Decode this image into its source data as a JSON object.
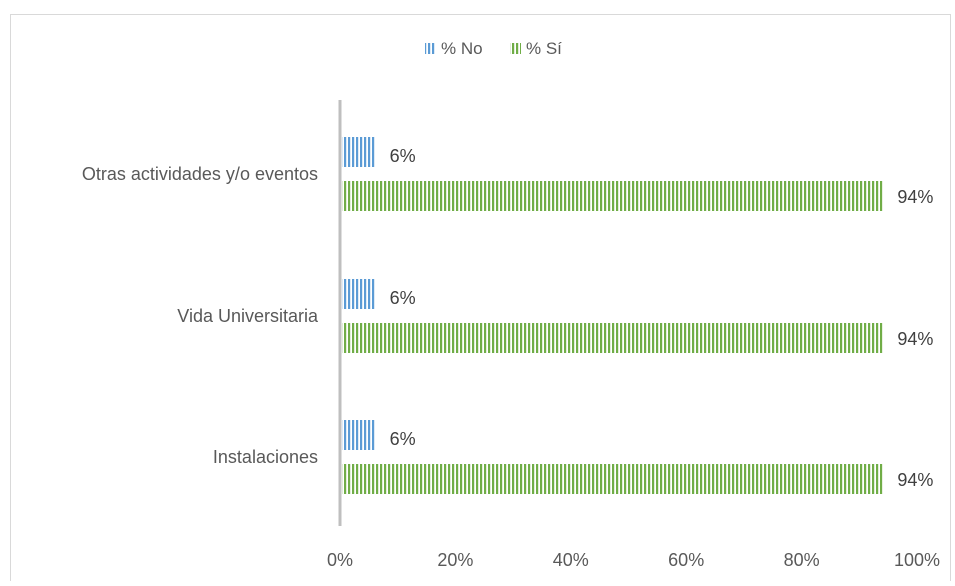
{
  "chart_data": {
    "type": "bar",
    "orientation": "horizontal",
    "categories": [
      "Otras actividades y/o eventos",
      "Vida Universitaria",
      "Instalaciones"
    ],
    "series": [
      {
        "name": "% No",
        "values": [
          6,
          6,
          6
        ],
        "labels": [
          "6%",
          "6%",
          "6%"
        ],
        "color": "#5b9bd5"
      },
      {
        "name": "% Sí",
        "values": [
          94,
          94,
          94
        ],
        "labels": [
          "94%",
          "94%",
          "94%"
        ],
        "color": "#70ad47"
      }
    ],
    "xlim": [
      0,
      100
    ],
    "x_ticks": [
      "0%",
      "20%",
      "40%",
      "60%",
      "80%",
      "100%"
    ],
    "legend_position": "top",
    "grid": false,
    "fill_pattern": "vertical-stripes"
  }
}
